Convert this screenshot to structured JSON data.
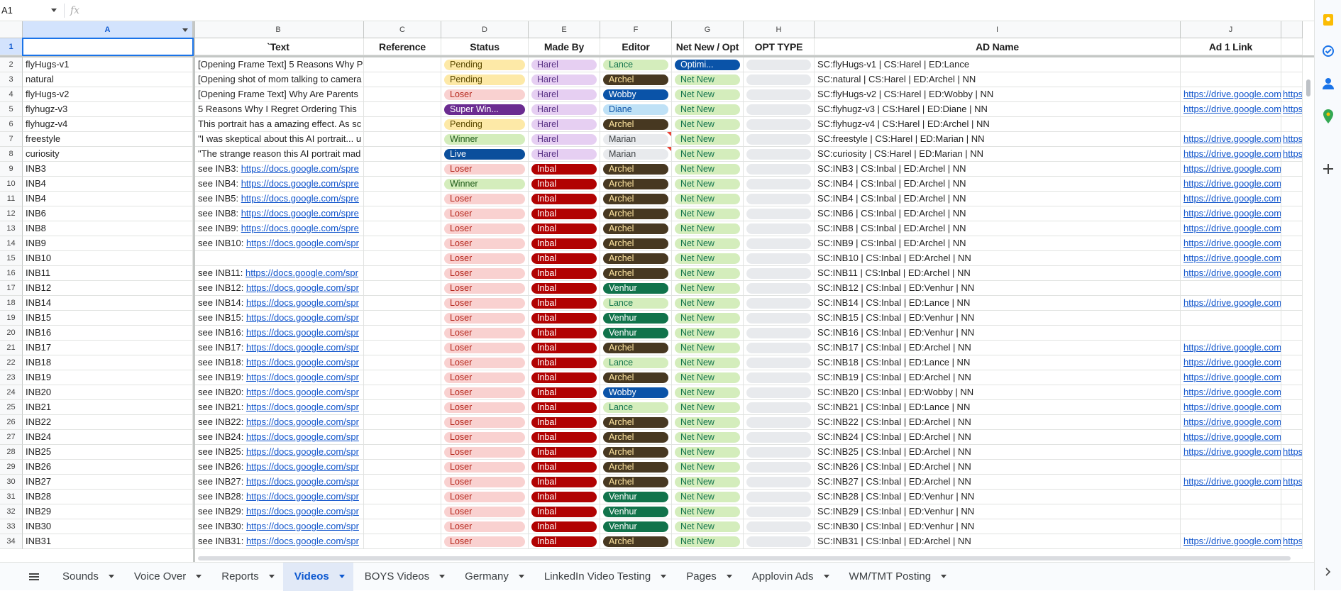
{
  "formula_bar": {
    "name_box": "A1",
    "fx": "fx",
    "content": ""
  },
  "columns": [
    {
      "letter": "A"
    },
    {
      "letter": "B"
    },
    {
      "letter": "C"
    },
    {
      "letter": "D"
    },
    {
      "letter": "E"
    },
    {
      "letter": "F"
    },
    {
      "letter": "G"
    },
    {
      "letter": "H"
    },
    {
      "letter": "I"
    },
    {
      "letter": "J"
    },
    {
      "letter": ""
    }
  ],
  "header_row": {
    "num": "1",
    "cells": [
      "",
      "`Text",
      "Reference",
      "Status",
      "Made By",
      "Editor",
      "Net New / Opt",
      "OPT TYPE",
      "AD Name",
      "Ad 1 Link",
      ""
    ]
  },
  "colors": {
    "Pending": [
      "#fde9a7",
      "#5b4a00"
    ],
    "Loser": [
      "#f9d1d0",
      "#b42318"
    ],
    "Super Winner": [
      "#6b2c91",
      "#ffffff"
    ],
    "Winner": [
      "#d4edbc",
      "#1e5b18"
    ],
    "Live": [
      "#0b4f9c",
      "#ffffff"
    ],
    "Harel": [
      "#e6cff2",
      "#5a3286"
    ],
    "Inbal": [
      "#b10202",
      "#ffffff"
    ],
    "Lance": [
      "#d4edbc",
      "#11734b"
    ],
    "Archel": [
      "#473821",
      "#ffe5a0"
    ],
    "Wobby": [
      "#0a53a8",
      "#ffffff"
    ],
    "Diane": [
      "#bfe1f6",
      "#0a53a8"
    ],
    "Marian": [
      "#e8eaed",
      "#3c4043"
    ],
    "Venhur": [
      "#11734b",
      "#ffffff"
    ],
    "Net New": [
      "#d4edbc",
      "#11734b"
    ],
    "Optimization": [
      "#0a53a8",
      "#ffffff"
    ],
    "empty": [
      "#e8eaed",
      "#3c4043"
    ]
  },
  "rows": [
    {
      "num": "2",
      "a": "flyHugs-v1",
      "b": "[Opening Frame Text] 5 Reasons Why P",
      "c": "",
      "status": "Pending",
      "status_label": "Pending",
      "made_by": "Harel",
      "editor": "Lance",
      "nn": "Optimization",
      "nn_label": "Optimi...",
      "ad": "SC:flyHugs-v1  | CS:Harel | ED:Lance",
      "link1": "",
      "link2": ""
    },
    {
      "num": "3",
      "a": "natural",
      "b": "[Opening shot of mom talking to camera",
      "c": "",
      "status": "Pending",
      "status_label": "Pending",
      "made_by": "Harel",
      "editor": "Archel",
      "nn": "Net New",
      "nn_label": "Net New",
      "ad": "SC:natural | CS:Harel | ED:Archel | NN",
      "link1": "",
      "link2": ""
    },
    {
      "num": "4",
      "a": "flyHugs-v2",
      "b": "[Opening Frame Text] Why Are Parents",
      "c": "",
      "status": "Loser",
      "status_label": "Loser",
      "made_by": "Harel",
      "editor": "Wobby",
      "nn": "Net New",
      "nn_label": "Net New",
      "ad": "SC:flyHugs-v2 | CS:Harel | ED:Wobby | NN",
      "link1": "https://drive.google.com",
      "link2": "https"
    },
    {
      "num": "5",
      "a": "flyhugz-v3",
      "b": "5 Reasons Why I Regret Ordering This",
      "c": "",
      "status": "Super Winner",
      "status_label": "Super Win...",
      "made_by": "Harel",
      "editor": "Diane",
      "nn": "Net New",
      "nn_label": "Net New",
      "ad": "SC:flyhugz-v3 | CS:Harel | ED:Diane | NN",
      "link1": "https://drive.google.com",
      "link2": "https"
    },
    {
      "num": "6",
      "a": "flyhugz-v4",
      "b": "This portrait has a amazing effect. As sc",
      "c": "",
      "status": "Pending",
      "status_label": "Pending",
      "made_by": "Harel",
      "editor": "Archel",
      "nn": "Net New",
      "nn_label": "Net New",
      "ad": "SC:flyhugz-v4 | CS:Harel | ED:Archel | NN",
      "link1": "",
      "link2": ""
    },
    {
      "num": "7",
      "a": "freestyle",
      "b": "\"I was skeptical about this AI portrait... u",
      "c": "",
      "status": "Winner",
      "status_label": "Winner",
      "made_by": "Harel",
      "editor": "Marian",
      "nn": "Net New",
      "nn_label": "Net New",
      "ad": "SC:freestyle | CS:Harel | ED:Marian | NN",
      "link1": "https://drive.google.com",
      "link2": "https"
    },
    {
      "num": "8",
      "a": "curiosity",
      "b": "\"The strange reason this AI portrait mad",
      "c": "",
      "status": "Live",
      "status_label": "Live",
      "made_by": "Harel",
      "editor": "Marian",
      "nn": "Net New",
      "nn_label": "Net New",
      "ad": "SC:curiosity | CS:Harel | ED:Marian | NN",
      "link1": "https://drive.google.com",
      "link2": "https"
    },
    {
      "num": "9",
      "a": "INB3",
      "b": "see INB3: ",
      "b_link": "https://docs.google.com/spre",
      "c": "",
      "status": "Loser",
      "status_label": "Loser",
      "made_by": "Inbal",
      "editor": "Archel",
      "nn": "Net New",
      "nn_label": "Net New",
      "ad": "SC:INB3 | CS:Inbal | ED:Archel | NN",
      "link1": "https://drive.google.com",
      "link2": ""
    },
    {
      "num": "10",
      "a": "INB4",
      "b": "see INB4: ",
      "b_link": "https://docs.google.com/spre",
      "c": "",
      "status": "Winner",
      "status_label": "Winner",
      "made_by": "Inbal",
      "editor": "Archel",
      "nn": "Net New",
      "nn_label": "Net New",
      "ad": "SC:INB4 | CS:Inbal | ED:Archel | NN",
      "link1": "https://drive.google.com",
      "link2": ""
    },
    {
      "num": "11",
      "a": "INB4",
      "b": "see INB5: ",
      "b_link": "https://docs.google.com/spre",
      "c": "",
      "status": "Loser",
      "status_label": "Loser",
      "made_by": "Inbal",
      "editor": "Archel",
      "nn": "Net New",
      "nn_label": "Net New",
      "ad": "SC:INB4 | CS:Inbal | ED:Archel | NN",
      "link1": "https://drive.google.com",
      "link2": ""
    },
    {
      "num": "12",
      "a": "INB6",
      "b": "see INB8: ",
      "b_link": "https://docs.google.com/spre",
      "c": "",
      "status": "Loser",
      "status_label": "Loser",
      "made_by": "Inbal",
      "editor": "Archel",
      "nn": "Net New",
      "nn_label": "Net New",
      "ad": "SC:INB6 | CS:Inbal | ED:Archel | NN",
      "link1": "https://drive.google.com",
      "link2": ""
    },
    {
      "num": "13",
      "a": "INB8",
      "b": "see INB9: ",
      "b_link": "https://docs.google.com/spre",
      "c": "",
      "status": "Loser",
      "status_label": "Loser",
      "made_by": "Inbal",
      "editor": "Archel",
      "nn": "Net New",
      "nn_label": "Net New",
      "ad": "SC:INB8 | CS:Inbal | ED:Archel | NN",
      "link1": "https://drive.google.com",
      "link2": ""
    },
    {
      "num": "14",
      "a": "INB9",
      "b": "see INB10: ",
      "b_link": "https://docs.google.com/spr",
      "c": "",
      "status": "Loser",
      "status_label": "Loser",
      "made_by": "Inbal",
      "editor": "Archel",
      "nn": "Net New",
      "nn_label": "Net New",
      "ad": "SC:INB9 | CS:Inbal | ED:Archel | NN",
      "link1": "https://drive.google.com",
      "link2": ""
    },
    {
      "num": "15",
      "a": "INB10",
      "b": "",
      "c": "",
      "status": "Loser",
      "status_label": "Loser",
      "made_by": "Inbal",
      "editor": "Archel",
      "nn": "Net New",
      "nn_label": "Net New",
      "ad": "SC:INB10 | CS:Inbal | ED:Archel | NN",
      "link1": "https://drive.google.com",
      "link2": ""
    },
    {
      "num": "16",
      "a": "INB11",
      "b": "see INB11: ",
      "b_link": "https://docs.google.com/spr",
      "c": "",
      "status": "Loser",
      "status_label": "Loser",
      "made_by": "Inbal",
      "editor": "Archel",
      "nn": "Net New",
      "nn_label": "Net New",
      "ad": "SC:INB11 | CS:Inbal | ED:Archel | NN",
      "link1": "https://drive.google.com",
      "link2": ""
    },
    {
      "num": "17",
      "a": "INB12",
      "b": "see INB12: ",
      "b_link": "https://docs.google.com/spr",
      "c": "",
      "status": "Loser",
      "status_label": "Loser",
      "made_by": "Inbal",
      "editor": "Venhur",
      "nn": "Net New",
      "nn_label": "Net New",
      "ad": "SC:INB12 | CS:Inbal | ED:Venhur | NN",
      "link1": "",
      "link2": ""
    },
    {
      "num": "18",
      "a": "INB14",
      "b": "see INB14: ",
      "b_link": "https://docs.google.com/spr",
      "c": "",
      "status": "Loser",
      "status_label": "Loser",
      "made_by": "Inbal",
      "editor": "Lance",
      "nn": "Net New",
      "nn_label": "Net New",
      "ad": "SC:INB14 | CS:Inbal | ED:Lance | NN",
      "link1": "https://drive.google.com",
      "link2": ""
    },
    {
      "num": "19",
      "a": "INB15",
      "b": "see INB15: ",
      "b_link": "https://docs.google.com/spr",
      "c": "",
      "status": "Loser",
      "status_label": "Loser",
      "made_by": "Inbal",
      "editor": "Venhur",
      "nn": "Net New",
      "nn_label": "Net New",
      "ad": "SC:INB15 | CS:Inbal | ED:Venhur | NN",
      "link1": "",
      "link2": ""
    },
    {
      "num": "20",
      "a": "INB16",
      "b": "see INB16: ",
      "b_link": "https://docs.google.com/spr",
      "c": "",
      "status": "Loser",
      "status_label": "Loser",
      "made_by": "Inbal",
      "editor": "Venhur",
      "nn": "Net New",
      "nn_label": "Net New",
      "ad": "SC:INB16 | CS:Inbal | ED:Venhur | NN",
      "link1": "",
      "link2": ""
    },
    {
      "num": "21",
      "a": "INB17",
      "b": "see INB17: ",
      "b_link": "https://docs.google.com/spr",
      "c": "",
      "status": "Loser",
      "status_label": "Loser",
      "made_by": "Inbal",
      "editor": "Archel",
      "nn": "Net New",
      "nn_label": "Net New",
      "ad": "SC:INB17 | CS:Inbal | ED:Archel | NN",
      "link1": "https://drive.google.com",
      "link2": ""
    },
    {
      "num": "22",
      "a": "INB18",
      "b": "see INB18: ",
      "b_link": "https://docs.google.com/spr",
      "c": "",
      "status": "Loser",
      "status_label": "Loser",
      "made_by": "Inbal",
      "editor": "Lance",
      "nn": "Net New",
      "nn_label": "Net New",
      "ad": "SC:INB18 | CS:Inbal | ED:Lance | NN",
      "link1": "https://drive.google.com",
      "link2": ""
    },
    {
      "num": "23",
      "a": "INB19",
      "b": "see INB19: ",
      "b_link": "https://docs.google.com/spr",
      "c": "",
      "status": "Loser",
      "status_label": "Loser",
      "made_by": "Inbal",
      "editor": "Archel",
      "nn": "Net New",
      "nn_label": "Net New",
      "ad": "SC:INB19 | CS:Inbal | ED:Archel | NN",
      "link1": "https://drive.google.com",
      "link2": ""
    },
    {
      "num": "24",
      "a": "INB20",
      "b": "see INB20: ",
      "b_link": "https://docs.google.com/spr",
      "c": "",
      "status": "Loser",
      "status_label": "Loser",
      "made_by": "Inbal",
      "editor": "Wobby",
      "nn": "Net New",
      "nn_label": "Net New",
      "ad": "SC:INB20 | CS:Inbal | ED:Wobby | NN",
      "link1": "https://drive.google.com",
      "link2": ""
    },
    {
      "num": "25",
      "a": "INB21",
      "b": "see INB21: ",
      "b_link": "https://docs.google.com/spr",
      "c": "",
      "status": "Loser",
      "status_label": "Loser",
      "made_by": "Inbal",
      "editor": "Lance",
      "nn": "Net New",
      "nn_label": "Net New",
      "ad": "SC:INB21 | CS:Inbal | ED:Lance | NN",
      "link1": "https://drive.google.com",
      "link2": ""
    },
    {
      "num": "26",
      "a": "INB22",
      "b": "see INB22: ",
      "b_link": "https://docs.google.com/spr",
      "c": "",
      "status": "Loser",
      "status_label": "Loser",
      "made_by": "Inbal",
      "editor": "Archel",
      "nn": "Net New",
      "nn_label": "Net New",
      "ad": "SC:INB22 | CS:Inbal | ED:Archel | NN",
      "link1": "https://drive.google.com",
      "link2": ""
    },
    {
      "num": "27",
      "a": "INB24",
      "b": "see INB24: ",
      "b_link": "https://docs.google.com/spr",
      "c": "",
      "status": "Loser",
      "status_label": "Loser",
      "made_by": "Inbal",
      "editor": "Archel",
      "nn": "Net New",
      "nn_label": "Net New",
      "ad": "SC:INB24 | CS:Inbal | ED:Archel | NN",
      "link1": "https://drive.google.com",
      "link2": ""
    },
    {
      "num": "28",
      "a": "INB25",
      "b": "see INB25: ",
      "b_link": "https://docs.google.com/spr",
      "c": "",
      "status": "Loser",
      "status_label": "Loser",
      "made_by": "Inbal",
      "editor": "Archel",
      "nn": "Net New",
      "nn_label": "Net New",
      "ad": "SC:INB25 | CS:Inbal | ED:Archel | NN",
      "link1": "https://drive.google.com",
      "link2": "https"
    },
    {
      "num": "29",
      "a": "INB26",
      "b": "see INB26: ",
      "b_link": "https://docs.google.com/spr",
      "c": "",
      "status": "Loser",
      "status_label": "Loser",
      "made_by": "Inbal",
      "editor": "Archel",
      "nn": "Net New",
      "nn_label": "Net New",
      "ad": "SC:INB26 | CS:Inbal | ED:Archel | NN",
      "link1": "",
      "link2": ""
    },
    {
      "num": "30",
      "a": "INB27",
      "b": "see INB27: ",
      "b_link": "https://docs.google.com/spr",
      "c": "",
      "status": "Loser",
      "status_label": "Loser",
      "made_by": "Inbal",
      "editor": "Archel",
      "nn": "Net New",
      "nn_label": "Net New",
      "ad": "SC:INB27 | CS:Inbal | ED:Archel | NN",
      "link1": "https://drive.google.com",
      "link2": "https"
    },
    {
      "num": "31",
      "a": "INB28",
      "b": "see INB28: ",
      "b_link": "https://docs.google.com/spr",
      "c": "",
      "status": "Loser",
      "status_label": "Loser",
      "made_by": "Inbal",
      "editor": "Venhur",
      "nn": "Net New",
      "nn_label": "Net New",
      "ad": "SC:INB28 | CS:Inbal | ED:Venhur | NN",
      "link1": "",
      "link2": ""
    },
    {
      "num": "32",
      "a": "INB29",
      "b": "see INB29: ",
      "b_link": "https://docs.google.com/spr",
      "c": "",
      "status": "Loser",
      "status_label": "Loser",
      "made_by": "Inbal",
      "editor": "Venhur",
      "nn": "Net New",
      "nn_label": "Net New",
      "ad": "SC:INB29 | CS:Inbal | ED:Venhur | NN",
      "link1": "",
      "link2": ""
    },
    {
      "num": "33",
      "a": "INB30",
      "b": "see INB30: ",
      "b_link": "https://docs.google.com/spr",
      "c": "",
      "status": "Loser",
      "status_label": "Loser",
      "made_by": "Inbal",
      "editor": "Venhur",
      "nn": "Net New",
      "nn_label": "Net New",
      "ad": "SC:INB30 | CS:Inbal | ED:Venhur | NN",
      "link1": "",
      "link2": ""
    },
    {
      "num": "34",
      "a": "INB31",
      "b": "see INB31: ",
      "b_link": "https://docs.google.com/spr",
      "c": "",
      "status": "Loser",
      "status_label": "Loser",
      "made_by": "Inbal",
      "editor": "Archel",
      "nn": "Net New",
      "nn_label": "Net New",
      "ad": "SC:INB31 | CS:Inbal | ED:Archel | NN",
      "link1": "https://drive.google.com",
      "link2": "https"
    }
  ],
  "sheet_tabs": [
    {
      "label": "Sounds",
      "active": false
    },
    {
      "label": "Voice Over",
      "active": false
    },
    {
      "label": "Reports",
      "active": false
    },
    {
      "label": "Videos",
      "active": true
    },
    {
      "label": "BOYS Videos",
      "active": false
    },
    {
      "label": "Germany",
      "active": false
    },
    {
      "label": "LinkedIn Video Testing",
      "active": false
    },
    {
      "label": "Pages",
      "active": false
    },
    {
      "label": "Applovin Ads",
      "active": false
    },
    {
      "label": "WM/TMT Posting",
      "active": false
    }
  ],
  "side_icons": [
    "keep-icon",
    "tasks-icon",
    "contacts-icon",
    "maps-icon",
    "add-icon"
  ]
}
